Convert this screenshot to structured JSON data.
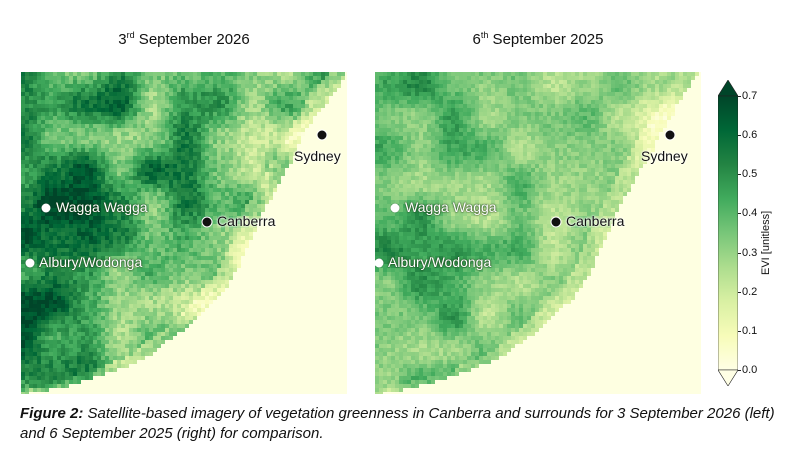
{
  "panels": [
    {
      "title_day": "3",
      "title_suffix": "rd",
      "title_rest": " September 2026",
      "pattern_strength": 1.0
    },
    {
      "title_day": "6",
      "title_suffix": "th",
      "title_rest": " September 2025",
      "pattern_strength": 0.72
    }
  ],
  "cities": {
    "sydney": "Sydney",
    "wagga": "Wagga Wagga",
    "canberra": "Canberra",
    "albury": "Albury/Wodonga"
  },
  "colorbar": {
    "label": "EVI [unitless]",
    "min": 0.0,
    "max": 0.7,
    "ticks": [
      "0.0",
      "0.1",
      "0.2",
      "0.3",
      "0.4",
      "0.5",
      "0.6",
      "0.7"
    ],
    "colors": [
      "#ffffe5",
      "#f7fcb9",
      "#d9f0a3",
      "#addd8e",
      "#78c679",
      "#41ab5d",
      "#238443",
      "#006837",
      "#004529"
    ]
  },
  "caption": {
    "label": "Figure 2:",
    "text": " Satellite-based imagery of vegetation greenness in Canberra and surrounds for 3 September 2026 (left) and 6 September 2025 (right) for comparison."
  }
}
